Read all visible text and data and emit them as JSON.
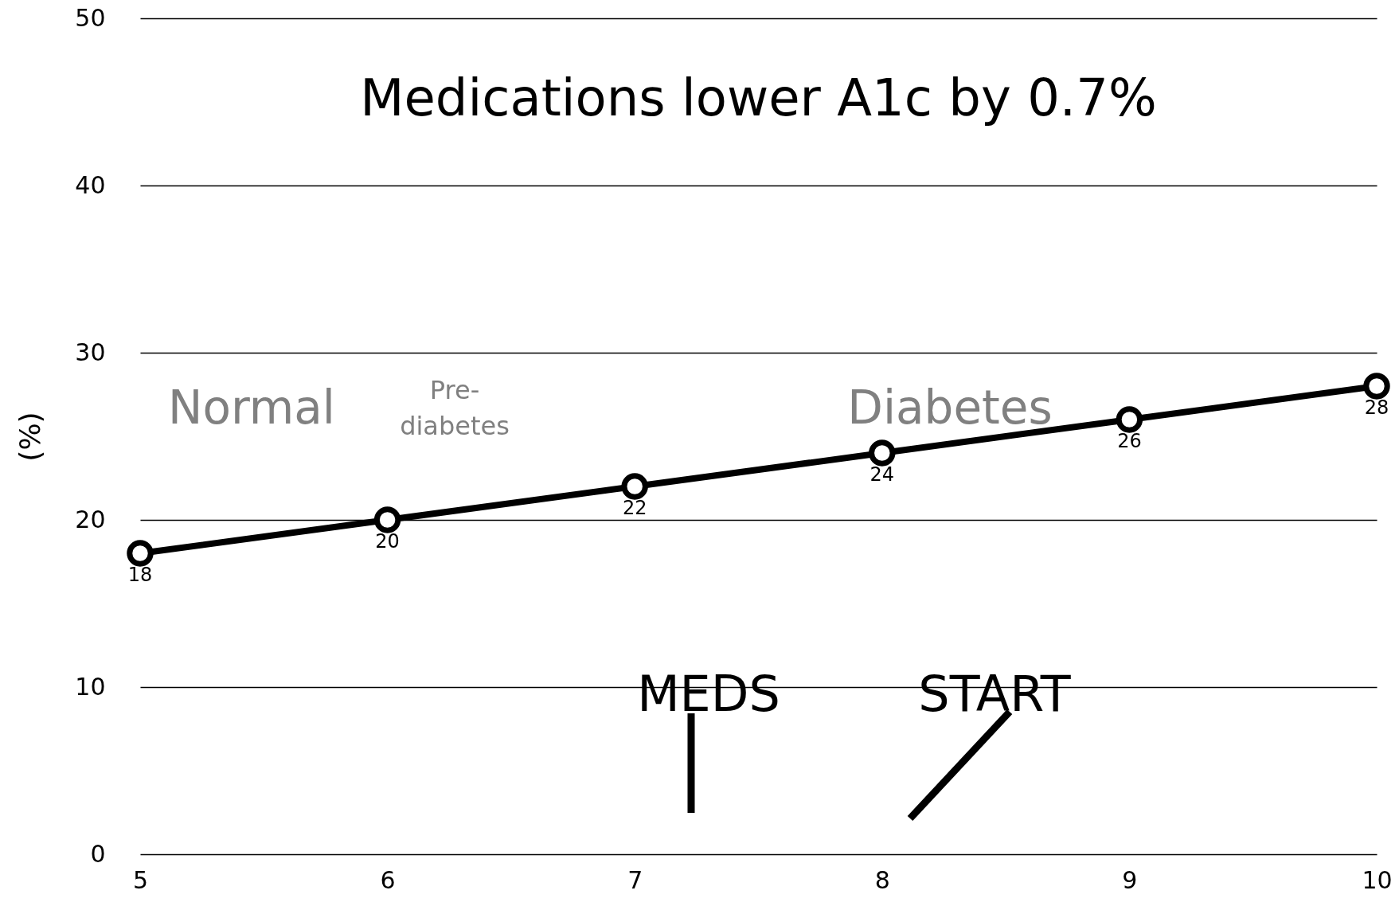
{
  "chart_data": {
    "type": "line",
    "title": "Medications lower A1c by 0.7%",
    "ylabel": "(%)",
    "x": [
      5,
      6,
      7,
      8,
      9,
      10
    ],
    "series": [
      {
        "color": "#000000",
        "values": [
          18,
          20,
          22,
          24,
          26,
          28
        ]
      }
    ],
    "xlim": [
      5,
      10
    ],
    "xticks": [
      {
        "value": 5,
        "label": "5"
      },
      {
        "value": 6,
        "label": "6"
      },
      {
        "value": 7,
        "label": "7"
      },
      {
        "value": 8,
        "label": "8"
      },
      {
        "value": 9,
        "label": "9"
      },
      {
        "value": 10,
        "label": "10"
      }
    ],
    "ylim": [
      0,
      50
    ],
    "yticks": [
      0,
      10,
      20,
      30,
      40,
      50
    ],
    "grid": "y",
    "marker": "circle",
    "line_style": "solid",
    "data_labels": true,
    "annotations": [
      "Normal",
      "Pre-diabetes",
      "Diabetes",
      "MEDS",
      "START"
    ]
  }
}
